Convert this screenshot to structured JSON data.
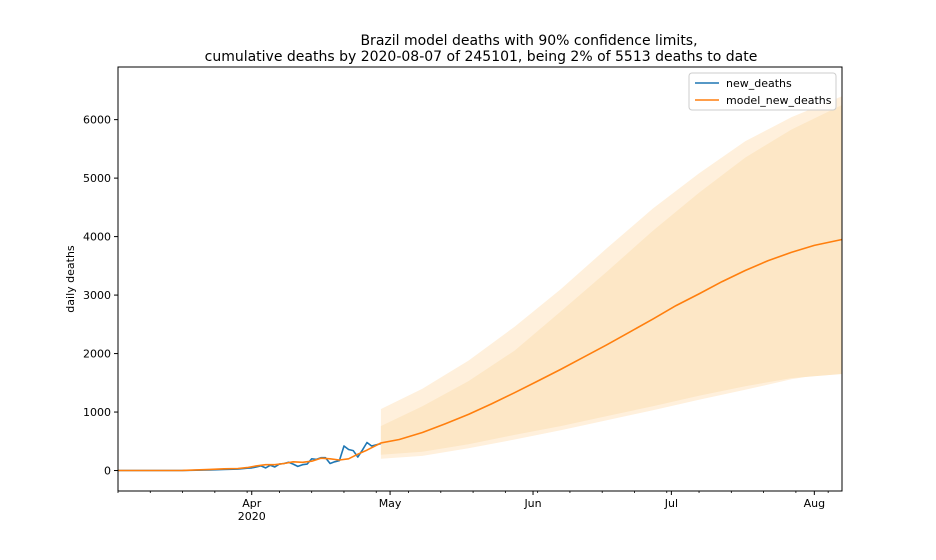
{
  "chart_data": {
    "type": "line",
    "title": [
      "Brazil model deaths with 90% confidence limits,",
      "cumulative deaths by 2020-08-07 of 245101, being 2% of 5513 deaths to date"
    ],
    "xlabel": "",
    "ylabel": "daily deaths",
    "xlim": [
      "2020-03-03",
      "2020-08-07"
    ],
    "ylim": [
      -350,
      6900
    ],
    "yticks": [
      0,
      1000,
      2000,
      3000,
      4000,
      5000,
      6000
    ],
    "xticks": [
      {
        "date": "2020-04-01",
        "label": "Apr",
        "sublabel": "2020"
      },
      {
        "date": "2020-05-01",
        "label": "May",
        "sublabel": ""
      },
      {
        "date": "2020-06-01",
        "label": "Jun",
        "sublabel": ""
      },
      {
        "date": "2020-07-01",
        "label": "Jul",
        "sublabel": ""
      },
      {
        "date": "2020-08-01",
        "label": "Aug",
        "sublabel": ""
      }
    ],
    "legend": {
      "position": "top-right"
    },
    "series": [
      {
        "name": "new_deaths",
        "color": "#1f77b4",
        "points": [
          [
            "2020-03-03",
            0
          ],
          [
            "2020-03-10",
            0
          ],
          [
            "2020-03-17",
            1
          ],
          [
            "2020-03-20",
            5
          ],
          [
            "2020-03-23",
            10
          ],
          [
            "2020-03-26",
            20
          ],
          [
            "2020-03-29",
            25
          ],
          [
            "2020-03-31",
            40
          ],
          [
            "2020-04-01",
            45
          ],
          [
            "2020-04-02",
            60
          ],
          [
            "2020-04-03",
            80
          ],
          [
            "2020-04-04",
            45
          ],
          [
            "2020-04-05",
            90
          ],
          [
            "2020-04-06",
            60
          ],
          [
            "2020-04-07",
            110
          ],
          [
            "2020-04-08",
            120
          ],
          [
            "2020-04-09",
            140
          ],
          [
            "2020-04-10",
            110
          ],
          [
            "2020-04-11",
            70
          ],
          [
            "2020-04-12",
            100
          ],
          [
            "2020-04-13",
            110
          ],
          [
            "2020-04-14",
            200
          ],
          [
            "2020-04-15",
            190
          ],
          [
            "2020-04-16",
            220
          ],
          [
            "2020-04-17",
            220
          ],
          [
            "2020-04-18",
            120
          ],
          [
            "2020-04-19",
            150
          ],
          [
            "2020-04-20",
            170
          ],
          [
            "2020-04-21",
            420
          ],
          [
            "2020-04-22",
            360
          ],
          [
            "2020-04-23",
            340
          ],
          [
            "2020-04-24",
            230
          ],
          [
            "2020-04-25",
            350
          ],
          [
            "2020-04-26",
            480
          ],
          [
            "2020-04-27",
            420
          ],
          [
            "2020-04-29",
            460
          ]
        ]
      },
      {
        "name": "model_new_deaths",
        "color": "#ff7f0e",
        "points": [
          [
            "2020-03-03",
            0
          ],
          [
            "2020-03-10",
            0
          ],
          [
            "2020-03-17",
            2
          ],
          [
            "2020-03-20",
            10
          ],
          [
            "2020-03-23",
            20
          ],
          [
            "2020-03-26",
            30
          ],
          [
            "2020-03-29",
            35
          ],
          [
            "2020-03-31",
            50
          ],
          [
            "2020-04-02",
            80
          ],
          [
            "2020-04-04",
            100
          ],
          [
            "2020-04-06",
            100
          ],
          [
            "2020-04-08",
            120
          ],
          [
            "2020-04-10",
            150
          ],
          [
            "2020-04-12",
            140
          ],
          [
            "2020-04-14",
            160
          ],
          [
            "2020-04-16",
            210
          ],
          [
            "2020-04-18",
            200
          ],
          [
            "2020-04-20",
            180
          ],
          [
            "2020-04-22",
            200
          ],
          [
            "2020-04-24",
            280
          ],
          [
            "2020-04-26",
            350
          ],
          [
            "2020-04-29",
            470
          ],
          [
            "2020-05-03",
            530
          ],
          [
            "2020-05-08",
            650
          ],
          [
            "2020-05-13",
            800
          ],
          [
            "2020-05-18",
            960
          ],
          [
            "2020-05-23",
            1140
          ],
          [
            "2020-05-28",
            1330
          ],
          [
            "2020-06-02",
            1530
          ],
          [
            "2020-06-07",
            1730
          ],
          [
            "2020-06-12",
            1940
          ],
          [
            "2020-06-17",
            2150
          ],
          [
            "2020-06-22",
            2370
          ],
          [
            "2020-06-27",
            2590
          ],
          [
            "2020-07-02",
            2820
          ],
          [
            "2020-07-07",
            3020
          ],
          [
            "2020-07-12",
            3230
          ],
          [
            "2020-07-17",
            3420
          ],
          [
            "2020-07-22",
            3590
          ],
          [
            "2020-07-27",
            3730
          ],
          [
            "2020-08-01",
            3850
          ],
          [
            "2020-08-07",
            3950
          ]
        ]
      }
    ],
    "bands": [
      {
        "name": "90% confidence outer",
        "color": "#fff0dc",
        "x": [
          "2020-04-29",
          "2020-05-08",
          "2020-05-18",
          "2020-05-28",
          "2020-06-07",
          "2020-06-17",
          "2020-06-27",
          "2020-07-07",
          "2020-07-17",
          "2020-07-27",
          "2020-08-07"
        ],
        "upper": [
          1050,
          1400,
          1880,
          2460,
          3100,
          3800,
          4480,
          5080,
          5630,
          6040,
          6400
        ],
        "lower": [
          200,
          250,
          380,
          530,
          690,
          860,
          1030,
          1210,
          1380,
          1560,
          1700
        ]
      },
      {
        "name": "90% confidence inner",
        "color": "#fde7c6",
        "x": [
          "2020-04-29",
          "2020-05-08",
          "2020-05-18",
          "2020-05-28",
          "2020-06-07",
          "2020-06-17",
          "2020-06-27",
          "2020-07-07",
          "2020-07-17",
          "2020-07-27",
          "2020-08-07"
        ],
        "upper": [
          760,
          1100,
          1530,
          2050,
          2720,
          3400,
          4100,
          4750,
          5350,
          5830,
          6250
        ],
        "lower": [
          270,
          320,
          450,
          610,
          760,
          930,
          1100,
          1280,
          1440,
          1580,
          1650
        ]
      }
    ]
  }
}
